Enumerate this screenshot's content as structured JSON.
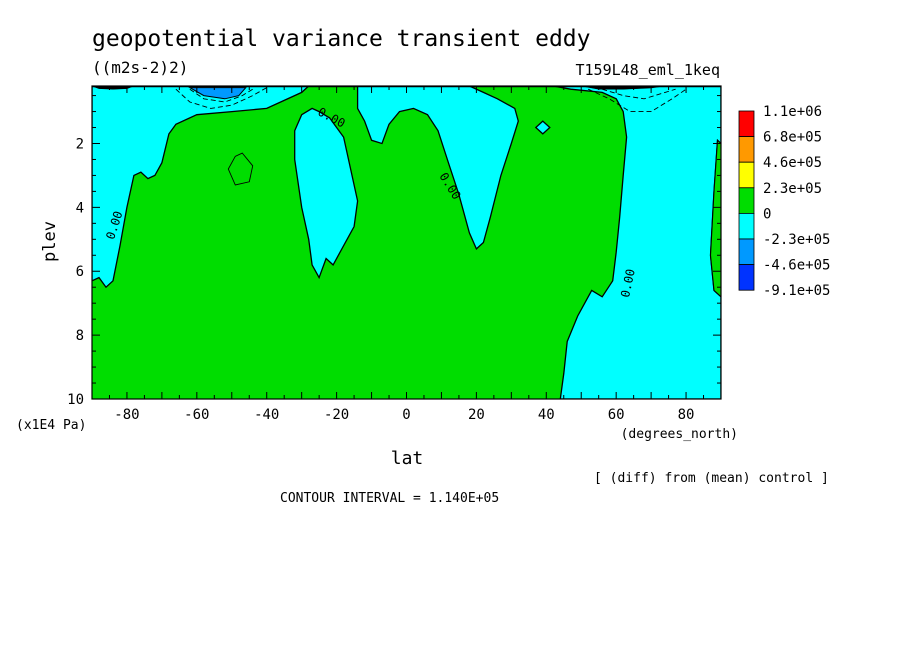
{
  "chart_data": {
    "type": "heatmap",
    "title": "geopotential variance transient eddy",
    "units": "((m2s-2)2)",
    "run_label": "T159L48_eml_1keq",
    "xlabel": "lat",
    "xunits": "(degrees_north)",
    "ylabel": "plev",
    "yunits": "(x1E4 Pa)",
    "xlim": [
      -90,
      90
    ],
    "ylim": [
      10,
      0.2
    ],
    "x_ticks": [
      -80,
      -60,
      -40,
      -20,
      0,
      20,
      40,
      60,
      80
    ],
    "x_tick_labels": [
      "-80",
      "-60",
      "-40",
      "-20",
      "0",
      "20",
      "40",
      "60",
      "80"
    ],
    "y_ticks": [
      2,
      4,
      6,
      8,
      10
    ],
    "y_tick_labels": [
      "2",
      "4",
      "6",
      "8",
      "10"
    ],
    "contour_labels": [
      "0.00",
      "0.00",
      "0.00",
      "0.00"
    ],
    "contour_interval_text": "CONTOUR INTERVAL = 1.140E+05",
    "diff_note": "[ (diff) from (mean) control ]",
    "legend": {
      "placement": "right",
      "levels": [
        "1.1e+06",
        "6.8e+05",
        "4.6e+05",
        "2.3e+05",
        "0",
        "-2.3e+05",
        "-4.6e+05",
        "-9.1e+05"
      ],
      "colors": [
        "#ff0000",
        "#ff9900",
        "#ffff00",
        "#00dd00",
        "#00ffff",
        "#0099ff",
        "#0033ff"
      ]
    },
    "region_colors": {
      "zero_to_pos": "#00dd00",
      "neg_small": "#00ffff",
      "neg_medium": "#0099ff",
      "neg_large": "#0033ff"
    },
    "regions": {
      "green_blobs": [
        [
          [
            -47,
            2.3
          ],
          [
            -44,
            2.7
          ],
          [
            -45,
            3.2
          ],
          [
            -49,
            3.3
          ],
          [
            -51,
            2.8
          ],
          [
            -49,
            2.4
          ]
        ]
      ],
      "green_strips": [
        [
          [
            90,
            2.0
          ],
          [
            89,
            1.9
          ],
          [
            88,
            3.5
          ],
          [
            87,
            5.5
          ],
          [
            88,
            6.6
          ],
          [
            90,
            6.8
          ]
        ]
      ],
      "cyan_regions": [
        [
          [
            -90,
            0.2
          ],
          [
            -90,
            6.3
          ],
          [
            -88,
            6.2
          ],
          [
            -86,
            6.5
          ],
          [
            -84,
            6.3
          ],
          [
            -82,
            5.2
          ],
          [
            -80,
            4.0
          ],
          [
            -78,
            3.0
          ],
          [
            -76,
            2.9
          ],
          [
            -74,
            3.1
          ],
          [
            -72,
            3.0
          ],
          [
            -70,
            2.6
          ],
          [
            -68,
            1.7
          ],
          [
            -66,
            1.4
          ],
          [
            -60,
            1.1
          ],
          [
            -50,
            1.0
          ],
          [
            -40,
            0.9
          ],
          [
            -30,
            0.4
          ],
          [
            -28,
            0.2
          ]
        ],
        [
          [
            -25,
            1.0
          ],
          [
            -22,
            1.2
          ],
          [
            -18,
            1.8
          ],
          [
            -16,
            2.8
          ],
          [
            -14,
            3.8
          ],
          [
            -15,
            4.6
          ],
          [
            -18,
            5.2
          ],
          [
            -21,
            5.8
          ],
          [
            -23,
            5.6
          ],
          [
            -25,
            6.2
          ],
          [
            -27,
            5.8
          ],
          [
            -28,
            5.0
          ],
          [
            -30,
            4.0
          ],
          [
            -32,
            2.5
          ],
          [
            -32,
            1.6
          ],
          [
            -30,
            1.1
          ],
          [
            -27,
            0.9
          ]
        ],
        [
          [
            -14,
            0.2
          ],
          [
            -14,
            0.9
          ],
          [
            -12,
            1.3
          ],
          [
            -10,
            1.9
          ],
          [
            -7,
            2.0
          ],
          [
            -5,
            1.4
          ],
          [
            -2,
            1.0
          ],
          [
            2,
            0.9
          ],
          [
            6,
            1.1
          ],
          [
            9,
            1.6
          ],
          [
            12,
            2.6
          ],
          [
            15,
            3.6
          ],
          [
            18,
            4.8
          ],
          [
            20,
            5.3
          ],
          [
            22,
            5.1
          ],
          [
            24,
            4.3
          ],
          [
            27,
            3.0
          ],
          [
            30,
            2.0
          ],
          [
            32,
            1.3
          ],
          [
            31,
            0.9
          ],
          [
            26,
            0.6
          ],
          [
            22,
            0.4
          ],
          [
            18,
            0.2
          ]
        ],
        [
          [
            37,
            1.5
          ],
          [
            39,
            1.3
          ],
          [
            41,
            1.5
          ],
          [
            39,
            1.7
          ]
        ],
        [
          [
            42,
            0.2
          ],
          [
            47,
            0.3
          ],
          [
            56,
            0.4
          ],
          [
            60,
            0.6
          ],
          [
            62,
            1.0
          ],
          [
            63,
            1.8
          ],
          [
            62,
            3.0
          ],
          [
            61,
            4.3
          ],
          [
            60,
            5.4
          ],
          [
            59,
            6.3
          ],
          [
            56,
            6.8
          ],
          [
            53,
            6.6
          ],
          [
            49,
            7.4
          ],
          [
            46,
            8.2
          ],
          [
            45,
            9.2
          ],
          [
            44,
            10.0
          ],
          [
            90,
            10.0
          ],
          [
            90,
            6.8
          ],
          [
            88,
            6.6
          ],
          [
            87,
            5.5
          ],
          [
            88,
            3.5
          ],
          [
            89,
            1.9
          ],
          [
            90,
            2.0
          ],
          [
            90,
            0.2
          ]
        ]
      ],
      "dodger_regions": [
        [
          [
            -62,
            0.25
          ],
          [
            -58,
            0.5
          ],
          [
            -52,
            0.6
          ],
          [
            -48,
            0.5
          ],
          [
            -46,
            0.25
          ]
        ]
      ]
    },
    "dashed_contours": [
      [
        [
          -66,
          0.3
        ],
        [
          -62,
          0.7
        ],
        [
          -56,
          0.9
        ],
        [
          -50,
          0.8
        ],
        [
          -44,
          0.5
        ],
        [
          -40,
          0.25
        ]
      ],
      [
        [
          -62,
          0.3
        ],
        [
          -58,
          0.6
        ],
        [
          -52,
          0.7
        ],
        [
          -47,
          0.5
        ],
        [
          -44,
          0.3
        ]
      ],
      [
        [
          52,
          0.3
        ],
        [
          58,
          0.6
        ],
        [
          64,
          1.0
        ],
        [
          70,
          1.0
        ],
        [
          76,
          0.6
        ],
        [
          80,
          0.3
        ]
      ],
      [
        [
          56,
          0.3
        ],
        [
          62,
          0.5
        ],
        [
          68,
          0.6
        ],
        [
          74,
          0.4
        ],
        [
          77,
          0.3
        ]
      ]
    ]
  }
}
